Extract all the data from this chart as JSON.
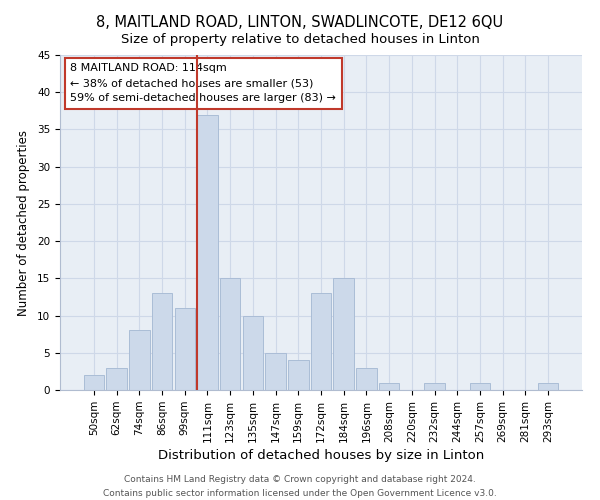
{
  "title": "8, MAITLAND ROAD, LINTON, SWADLINCOTE, DE12 6QU",
  "subtitle": "Size of property relative to detached houses in Linton",
  "xlabel": "Distribution of detached houses by size in Linton",
  "ylabel": "Number of detached properties",
  "bar_labels": [
    "50sqm",
    "62sqm",
    "74sqm",
    "86sqm",
    "99sqm",
    "111sqm",
    "123sqm",
    "135sqm",
    "147sqm",
    "159sqm",
    "172sqm",
    "184sqm",
    "196sqm",
    "208sqm",
    "220sqm",
    "232sqm",
    "244sqm",
    "257sqm",
    "269sqm",
    "281sqm",
    "293sqm"
  ],
  "bar_values": [
    2,
    3,
    8,
    13,
    11,
    37,
    15,
    10,
    5,
    4,
    13,
    15,
    3,
    1,
    0,
    1,
    0,
    1,
    0,
    0,
    1
  ],
  "bar_color": "#ccd9ea",
  "bar_edge_color": "#aabdd6",
  "vline_x_index": 5,
  "vline_color": "#c0392b",
  "annotation_line1": "8 MAITLAND ROAD: 114sqm",
  "annotation_line2": "← 38% of detached houses are smaller (53)",
  "annotation_line3": "59% of semi-detached houses are larger (83) →",
  "annotation_box_color": "#c0392b",
  "ylim": [
    0,
    45
  ],
  "yticks": [
    0,
    5,
    10,
    15,
    20,
    25,
    30,
    35,
    40,
    45
  ],
  "grid_color": "#ced8e8",
  "background_color": "#e8eef5",
  "footer_line1": "Contains HM Land Registry data © Crown copyright and database right 2024.",
  "footer_line2": "Contains public sector information licensed under the Open Government Licence v3.0.",
  "title_fontsize": 10.5,
  "subtitle_fontsize": 9.5,
  "xlabel_fontsize": 9.5,
  "ylabel_fontsize": 8.5,
  "tick_fontsize": 7.5,
  "footer_fontsize": 6.5
}
